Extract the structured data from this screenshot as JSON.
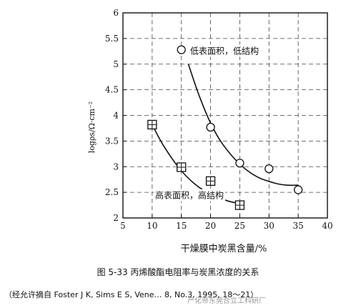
{
  "figure": {
    "caption": "图 5-33 丙烯酸酯电阻率与炭黑浓度的关系",
    "source": "（经允许摘自 Foster J K, Sims E S, Vene… 8, No.3, 1995, 18～21）",
    "watermark": "产化帝东莞合立工科研厂"
  },
  "chart_data": {
    "type": "scatter",
    "xlabel": "干燥膜中炭黑含量/%",
    "ylabel": "logρs/Ω·cm⁻²",
    "xlim": [
      5,
      40
    ],
    "ylim": [
      2,
      6
    ],
    "x_ticks": [
      5,
      10,
      15,
      20,
      25,
      30,
      35,
      40
    ],
    "y_ticks": [
      2,
      2.5,
      3,
      3.5,
      4,
      4.5,
      5,
      5.5,
      6
    ],
    "x_tick_labels": [
      "5",
      "10",
      "15",
      "20",
      "25",
      "30",
      "35",
      "40"
    ],
    "y_tick_labels": [
      "2",
      "2.5",
      "3",
      "3.5",
      "4",
      "4.5",
      "5",
      "5.5",
      "6"
    ],
    "grid": "dashed",
    "series": [
      {
        "name": "低表面积，低结构",
        "marker": "circle",
        "points": [
          [
            15,
            5.28
          ],
          [
            20,
            3.77
          ],
          [
            25,
            3.07
          ],
          [
            30,
            2.96
          ],
          [
            35,
            2.55
          ]
        ],
        "curve": [
          [
            16.2,
            5.0
          ],
          [
            18,
            4.4
          ],
          [
            20,
            3.85
          ],
          [
            22,
            3.45
          ],
          [
            25,
            3.05
          ],
          [
            28,
            2.8
          ],
          [
            31,
            2.68
          ],
          [
            33,
            2.64
          ],
          [
            35,
            2.64
          ]
        ]
      },
      {
        "name": "高表面积，高结构",
        "marker": "square-cross",
        "points": [
          [
            10,
            3.82
          ],
          [
            15,
            2.99
          ],
          [
            20,
            2.72
          ],
          [
            25,
            2.25
          ]
        ],
        "curve": [
          [
            10,
            3.82
          ],
          [
            12,
            3.4
          ],
          [
            15,
            2.92
          ],
          [
            18,
            2.6
          ],
          [
            21,
            2.42
          ],
          [
            23,
            2.33
          ],
          [
            25,
            2.28
          ]
        ]
      }
    ],
    "annotations": [
      {
        "text": "低表面积，低结构",
        "x": 16.5,
        "y": 5.2
      },
      {
        "text": "高表面积，高结构",
        "x": 10.5,
        "y": 2.38
      }
    ]
  }
}
